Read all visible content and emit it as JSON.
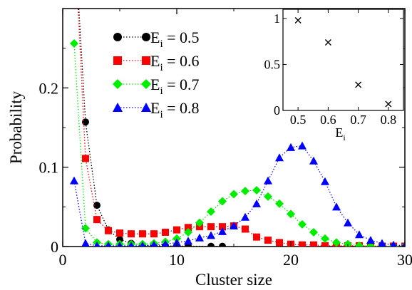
{
  "chart_data": {
    "type": "line",
    "xlabel": "Cluster size",
    "ylabel": "Probability",
    "xlim": [
      0,
      30
    ],
    "ylim": [
      0,
      0.3
    ],
    "xticks": [
      0,
      10,
      20,
      30
    ],
    "yticks": [
      0,
      0.1,
      0.2
    ],
    "xtick_labels": [
      "0",
      "10",
      "20",
      "30"
    ],
    "ytick_labels": [
      "0",
      "0.1",
      "0.2"
    ],
    "grid": false,
    "legend_position": "top-left",
    "series": [
      {
        "name_main": "E",
        "name_sub": "i",
        "name_value": " = 0.5",
        "color": "#000000",
        "marker": "circle",
        "x": [
          1,
          2,
          3,
          4,
          5,
          6,
          7,
          8,
          9,
          10,
          11,
          13,
          14
        ],
        "y": [
          0.4,
          0.157,
          0.052,
          0.021,
          0.009,
          0.004,
          0.002,
          0.001,
          0.001,
          0.0005,
          0.0005,
          0.0003,
          0.0003
        ]
      },
      {
        "name_main": "E",
        "name_sub": "i",
        "name_value": " = 0.6",
        "color": "#ff0000",
        "marker": "square",
        "x": [
          1,
          2,
          3,
          4,
          5,
          6,
          7,
          8,
          9,
          10,
          11,
          12,
          13,
          14,
          15,
          16,
          17,
          18,
          19,
          20,
          21,
          22,
          23,
          24,
          25,
          26,
          27,
          28,
          29,
          30
        ],
        "y": [
          0.4,
          0.111,
          0.034,
          0.02,
          0.017,
          0.016,
          0.016,
          0.016,
          0.018,
          0.021,
          0.024,
          0.025,
          0.025,
          0.025,
          0.026,
          0.022,
          0.012,
          0.008,
          0.005,
          0.003,
          0.002,
          0.002,
          0.001,
          0.001,
          0.001,
          0.001,
          0.0005,
          0.0005,
          0.0005,
          0.0005
        ]
      },
      {
        "name_main": "E",
        "name_sub": "i",
        "name_value": " = 0.7",
        "color": "#00ee00",
        "marker": "diamond",
        "x": [
          1,
          2,
          3,
          4,
          5,
          6,
          7,
          8,
          9,
          10,
          11,
          12,
          13,
          14,
          15,
          16,
          17,
          18,
          19,
          20,
          21,
          22,
          23,
          24,
          25,
          26,
          27,
          28,
          29,
          30
        ],
        "y": [
          0.256,
          0.023,
          0.005,
          0.003,
          0.003,
          0.003,
          0.003,
          0.004,
          0.006,
          0.01,
          0.018,
          0.03,
          0.044,
          0.057,
          0.066,
          0.07,
          0.071,
          0.063,
          0.054,
          0.041,
          0.028,
          0.018,
          0.01,
          0.005,
          0.003,
          0.001,
          0.0005,
          0.0005,
          0.0003,
          0.0003
        ]
      },
      {
        "name_main": "E",
        "name_sub": "i",
        "name_value": " = 0.8",
        "color": "#0000ff",
        "marker": "triangle",
        "x": [
          1,
          2,
          3,
          4,
          5,
          6,
          7,
          8,
          9,
          10,
          11,
          12,
          13,
          14,
          15,
          16,
          17,
          18,
          19,
          20,
          21,
          22,
          23,
          24,
          25,
          26,
          27,
          28,
          29,
          30
        ],
        "y": [
          0.083,
          0.004,
          0.001,
          0.001,
          0.001,
          0.001,
          0.001,
          0.002,
          0.003,
          0.005,
          0.007,
          0.011,
          0.014,
          0.019,
          0.026,
          0.037,
          0.054,
          0.083,
          0.112,
          0.125,
          0.127,
          0.108,
          0.082,
          0.05,
          0.03,
          0.015,
          0.008,
          0.004,
          0.002,
          0.001
        ]
      }
    ],
    "inset": {
      "xlabel_main": "E",
      "xlabel_sub": "i",
      "xlim": [
        0.45,
        0.85
      ],
      "ylim": [
        0,
        1.1
      ],
      "xticks": [
        0.5,
        0.6,
        0.7,
        0.8
      ],
      "yticks": [
        0,
        0.5,
        1
      ],
      "xtick_labels": [
        "0.5",
        "0.6",
        "0.7",
        "0.8"
      ],
      "ytick_labels": [
        "0",
        "0.5",
        "1"
      ],
      "marker": "cross",
      "x": [
        0.5,
        0.6,
        0.7,
        0.8
      ],
      "y": [
        0.98,
        0.74,
        0.28,
        0.07
      ]
    }
  }
}
